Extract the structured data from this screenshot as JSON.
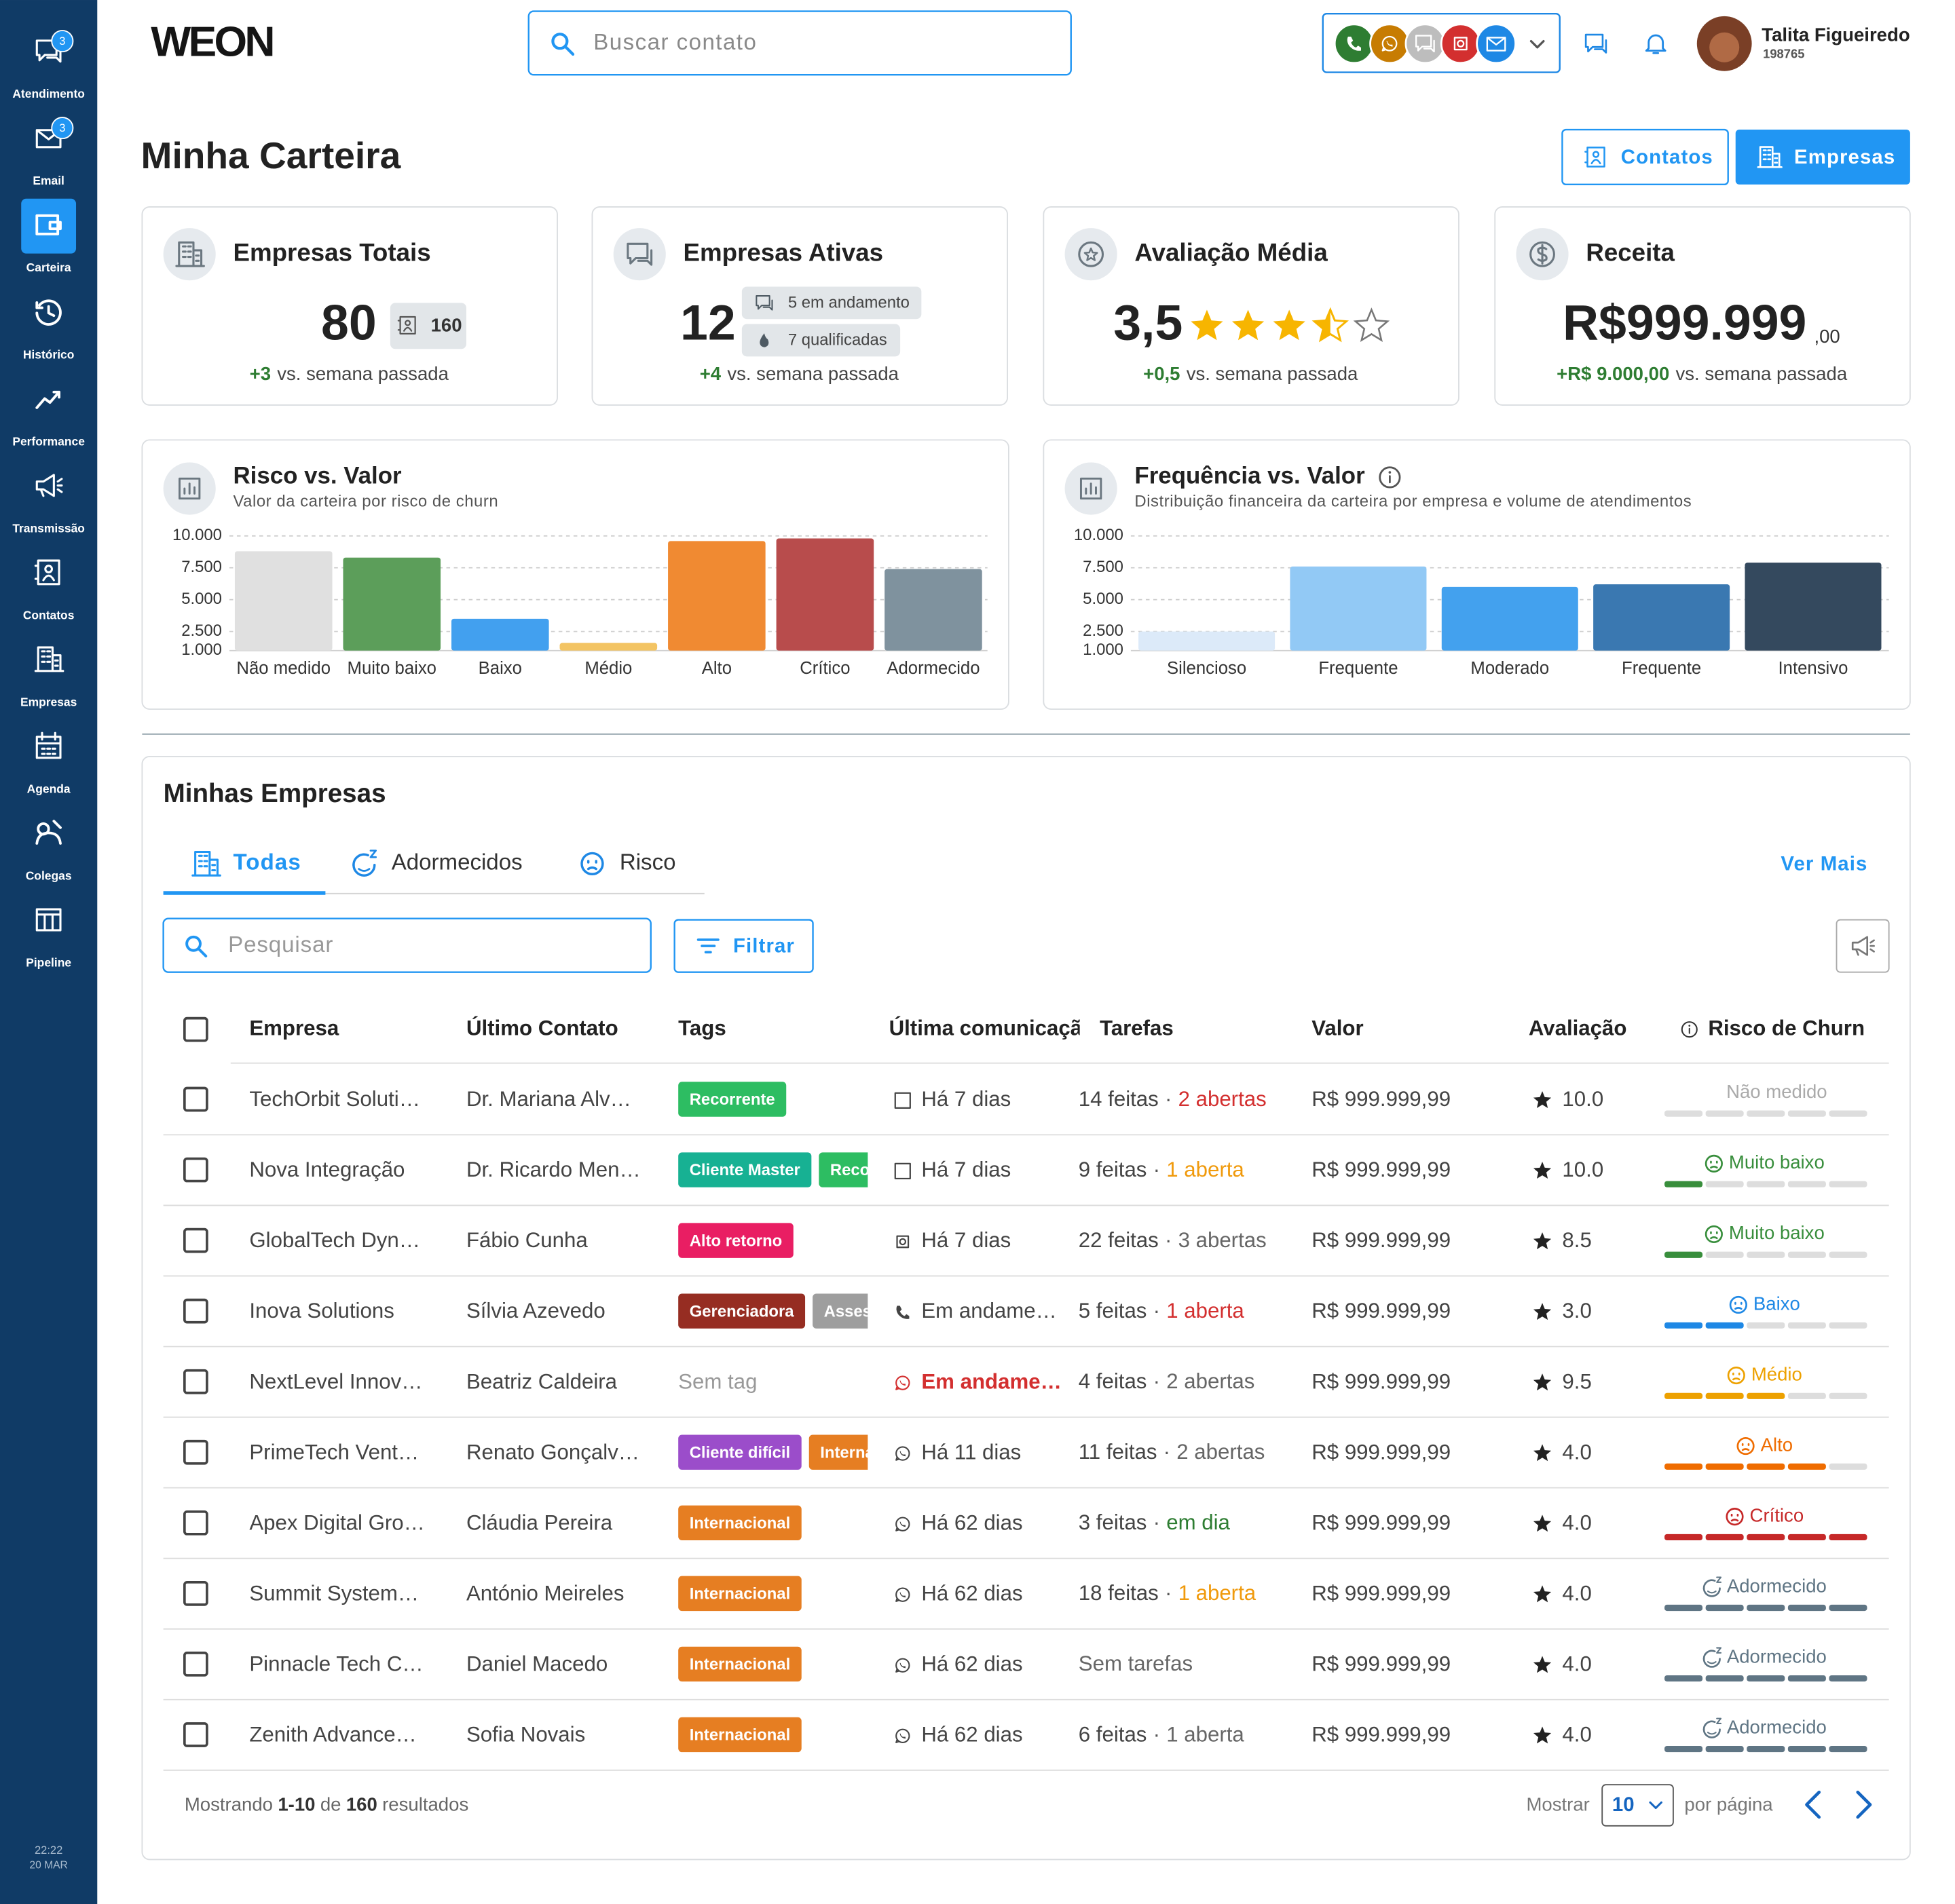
{
  "sidebar": {
    "items": [
      {
        "label": "Atendimento",
        "badge": "3"
      },
      {
        "label": "Email",
        "badge": "3"
      },
      {
        "label": "Carteira",
        "active": true
      },
      {
        "label": "Histórico"
      },
      {
        "label": "Performance"
      },
      {
        "label": "Transmissão"
      },
      {
        "label": "Contatos"
      },
      {
        "label": "Empresas"
      },
      {
        "label": "Agenda"
      },
      {
        "label": "Colegas"
      },
      {
        "label": "Pipeline"
      }
    ],
    "time": "22:22",
    "date": "20 MAR"
  },
  "header": {
    "logo": "WEON",
    "search_placeholder": "Buscar contato",
    "user_name": "Talita Figueiredo",
    "user_id": "198765"
  },
  "page": {
    "title": "Minha Carteira",
    "buttons": [
      "Contatos",
      "Empresas"
    ]
  },
  "kpis": [
    {
      "title": "Empresas Totais",
      "value": "80",
      "badges": [
        "160"
      ],
      "delta": "+3",
      "delta_text": "vs. semana passada"
    },
    {
      "title": "Empresas Ativas",
      "value": "12",
      "badges": [
        "5 em andamento",
        "7 qualificadas"
      ],
      "delta": "+4",
      "delta_text": "vs. semana passada"
    },
    {
      "title": "Avaliação Média",
      "value": "3,5",
      "stars": 3.5,
      "delta": "+0,5",
      "delta_text": "vs. semana passada"
    },
    {
      "title": "Receita",
      "value": "R$999.999",
      "cents": ",00",
      "delta": "+R$ 9.000,00",
      "delta_text": "vs. semana passada"
    }
  ],
  "chart_data": [
    {
      "type": "bar",
      "title": "Risco vs. Valor",
      "subtitle": "Valor da carteira por risco de churn",
      "categories": [
        "Não medido",
        "Muito baixo",
        "Baixo",
        "Médio",
        "Alto",
        "Crítico",
        "Adormecido"
      ],
      "values": [
        8800,
        8300,
        3500,
        1600,
        9600,
        9800,
        7400
      ],
      "colors": [
        "#e0e0e0",
        "#5c9e5a",
        "#42a0ef",
        "#f3c463",
        "#f08a32",
        "#b84c4c",
        "#7f929e"
      ],
      "ylim": [
        1000,
        10000
      ],
      "yticks": [
        {
          "value": 1000,
          "label": "1.000"
        },
        {
          "value": 2500,
          "label": "2.500"
        },
        {
          "value": 5000,
          "label": "5.000"
        },
        {
          "value": 7500,
          "label": "7.500"
        },
        {
          "value": 10000,
          "label": "10.000"
        }
      ],
      "grid": true
    },
    {
      "type": "bar",
      "title": "Frequência vs. Valor",
      "subtitle": "Distribuição financeira da carteira por empresa e volume de atendimentos",
      "info_icon": true,
      "categories": [
        "Silencioso",
        "Frequente",
        "Moderado",
        "Frequente",
        "Intensivo"
      ],
      "values": [
        2500,
        7600,
        6000,
        6200,
        7900
      ],
      "colors": [
        "#dceaf9",
        "#92c9f5",
        "#43a1ee",
        "#3a78b1",
        "#34495e"
      ],
      "ylim": [
        1000,
        10000
      ],
      "yticks": [
        {
          "value": 1000,
          "label": "1.000"
        },
        {
          "value": 2500,
          "label": "2.500"
        },
        {
          "value": 5000,
          "label": "5.000"
        },
        {
          "value": 7500,
          "label": "7.500"
        },
        {
          "value": 10000,
          "label": "10.000"
        }
      ],
      "grid": true
    }
  ],
  "table": {
    "title": "Minhas Empresas",
    "tabs": [
      "Todas",
      "Adormecidos",
      "Risco"
    ],
    "ver_mais": "Ver Mais",
    "search_placeholder": "Pesquisar",
    "filter": "Filtrar",
    "columns": [
      "Empresa",
      "Último Contato",
      "Tags",
      "Última comunicação",
      "Tarefas",
      "Valor",
      "Avaliação",
      "Risco de Churn"
    ],
    "separator": "·",
    "rows": [
      {
        "company": "TechOrbit Soluti…",
        "contact": "Dr. Mariana Alv…",
        "tags": [
          {
            "name": "Recorrente",
            "color": "#2dbd62"
          }
        ],
        "channel": "email",
        "last": "Há 7 dias",
        "tasks": {
          "done": "14 feitas",
          "open": "2 abertas",
          "open_color": "#d32f2f"
        },
        "value": "R$ 999.999,99",
        "rating": "10.0",
        "churn": {
          "label": "Não medido",
          "filled": 0,
          "color": "#aaaaaa"
        }
      },
      {
        "company": "Nova Integração",
        "contact": "Dr. Ricardo Men…",
        "tags": [
          {
            "name": "Cliente Master",
            "color": "#17b193"
          },
          {
            "name": "Recor",
            "color": "#2dbd62"
          }
        ],
        "channel": "email",
        "last": "Há 7 dias",
        "tasks": {
          "done": "9 feitas",
          "open": "1 aberta",
          "open_color": "#f09a0c"
        },
        "value": "R$ 999.999,99",
        "rating": "10.0",
        "churn": {
          "label": "Muito baixo",
          "filled": 1,
          "color": "#388e3c"
        }
      },
      {
        "company": "GlobalTech Dyn…",
        "contact": "Fábio Cunha",
        "tags": [
          {
            "name": "Alto retorno",
            "color": "#e91e63"
          }
        ],
        "channel": "instagram",
        "last": "Há 7 dias",
        "tasks": {
          "done": "22 feitas",
          "open": "3 abertas",
          "open_color": "#666666"
        },
        "value": "R$ 999.999,99",
        "rating": "8.5",
        "churn": {
          "label": "Muito baixo",
          "filled": 1,
          "color": "#388e3c"
        }
      },
      {
        "company": "Inova Solutions",
        "contact": "Sílvia Azevedo",
        "tags": [
          {
            "name": "Gerenciadora",
            "color": "#962d22"
          },
          {
            "name": "Assess",
            "color": "#9e9e9e"
          }
        ],
        "channel": "phone",
        "last": "Em andame…",
        "tasks": {
          "done": "5 feitas",
          "open": "1 aberta",
          "open_color": "#d32f2f"
        },
        "value": "R$ 999.999,99",
        "rating": "3.0",
        "churn": {
          "label": "Baixo",
          "filled": 2,
          "color": "#1e88e5"
        }
      },
      {
        "company": "NextLevel Innov…",
        "contact": "Beatriz Caldeira",
        "tags": [],
        "no_tags": "Sem tag",
        "channel": "whatsapp",
        "channel_color": "#d32f2f",
        "last": "Em andame…",
        "last_color": "#d32f2f",
        "tasks": {
          "done": "4 feitas",
          "open": "2 abertas",
          "open_color": "#666666"
        },
        "value": "R$ 999.999,99",
        "rating": "9.5",
        "churn": {
          "label": "Médio",
          "filled": 3,
          "color": "#eda100"
        }
      },
      {
        "company": "PrimeTech Vent…",
        "contact": "Renato Gonçalv…",
        "tags": [
          {
            "name": "Cliente difícil",
            "color": "#9b4dca"
          },
          {
            "name": "Interna",
            "color": "#e67e22"
          }
        ],
        "channel": "whatsapp",
        "last": "Há 11 dias",
        "tasks": {
          "done": "11 feitas",
          "open": "2 abertas",
          "open_color": "#666666"
        },
        "value": "R$ 999.999,99",
        "rating": "4.0",
        "churn": {
          "label": "Alto",
          "filled": 4,
          "color": "#ef6c00"
        }
      },
      {
        "company": "Apex Digital Gro…",
        "contact": "Cláudia Pereira",
        "tags": [
          {
            "name": "Internacional",
            "color": "#e67e22"
          }
        ],
        "channel": "whatsapp",
        "last": "Há 62 dias",
        "tasks": {
          "done": "3 feitas",
          "open": "em dia",
          "open_color": "#2e7d32"
        },
        "value": "R$ 999.999,99",
        "rating": "4.0",
        "churn": {
          "label": "Crítico",
          "filled": 5,
          "color": "#c62828"
        }
      },
      {
        "company": "Summit System…",
        "contact": "António Meireles",
        "tags": [
          {
            "name": "Internacional",
            "color": "#e67e22"
          }
        ],
        "channel": "whatsapp",
        "last": "Há 62 dias",
        "tasks": {
          "done": "18 feitas",
          "open": "1 aberta",
          "open_color": "#f09a0c"
        },
        "value": "R$ 999.999,99",
        "rating": "4.0",
        "churn": {
          "label": "Adormecido",
          "filled": 5,
          "color": "#5f7584"
        }
      },
      {
        "company": "Pinnacle Tech C…",
        "contact": "Daniel Macedo",
        "tags": [
          {
            "name": "Internacional",
            "color": "#e67e22"
          }
        ],
        "channel": "whatsapp",
        "last": "Há 62 dias",
        "tasks": {
          "done": "Sem tarefas",
          "done_color": "#666666"
        },
        "value": "R$ 999.999,99",
        "rating": "4.0",
        "churn": {
          "label": "Adormecido",
          "filled": 5,
          "color": "#5f7584"
        }
      },
      {
        "company": "Zenith Advance…",
        "contact": "Sofia Novais",
        "tags": [
          {
            "name": "Internacional",
            "color": "#e67e22"
          }
        ],
        "channel": "whatsapp",
        "last": "Há 62 dias",
        "tasks": {
          "done": "6 feitas",
          "open": "1 aberta",
          "open_color": "#666666"
        },
        "value": "R$ 999.999,99",
        "rating": "4.0",
        "churn": {
          "label": "Adormecido",
          "filled": 5,
          "color": "#5f7584"
        }
      }
    ],
    "footer": {
      "prefix": "Mostrando",
      "range": "1-10",
      "of": "de",
      "total": "160",
      "suffix": "resultados",
      "show": "Mostrar",
      "per_page": "10",
      "per_page_text": "por página"
    }
  }
}
